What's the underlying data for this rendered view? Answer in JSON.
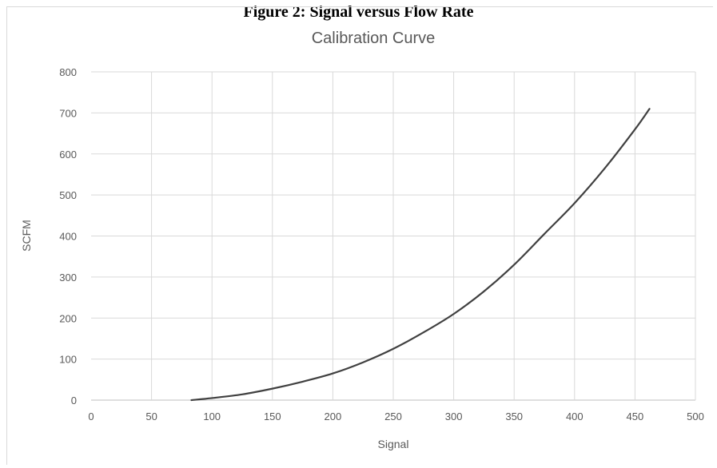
{
  "figure": {
    "caption": "Figure 2: Signal versus Flow Rate"
  },
  "chart_data": {
    "type": "line",
    "title": "Calibration Curve",
    "xlabel": "Signal",
    "ylabel": "SCFM",
    "xlim": [
      0,
      500
    ],
    "ylim": [
      0,
      800
    ],
    "x_ticks": [
      0,
      50,
      100,
      150,
      200,
      250,
      300,
      350,
      400,
      450,
      500
    ],
    "y_ticks": [
      0,
      100,
      200,
      300,
      400,
      500,
      600,
      700,
      800
    ],
    "grid": true,
    "legend": "none",
    "series": [
      {
        "color": "#404040",
        "x": [
          83,
          100,
          125,
          150,
          175,
          200,
          225,
          250,
          275,
          300,
          325,
          350,
          375,
          400,
          425,
          450,
          462
        ],
        "y": [
          0,
          5,
          14,
          28,
          45,
          65,
          92,
          125,
          165,
          210,
          265,
          330,
          405,
          480,
          565,
          660,
          710
        ]
      }
    ],
    "colors": {
      "line": "#404040",
      "grid": "#d9d9d9",
      "text": "#595959"
    }
  }
}
